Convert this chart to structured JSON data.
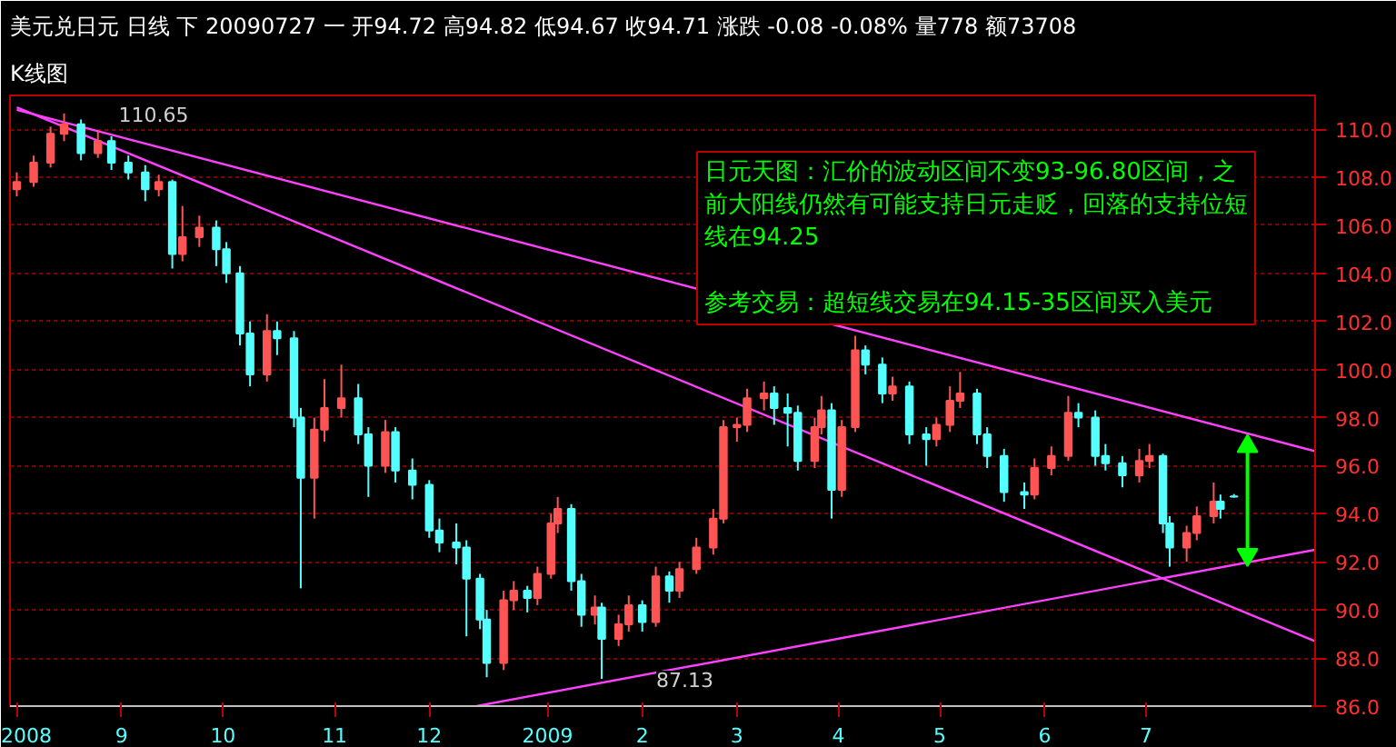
{
  "chart_data": {
    "type": "candlestick",
    "title": "美元兑日元 日线 下 20090727 一 开94.72 高94.82 低94.67 收94.71 涨跌 -0.08 -0.08% 量778 额73708",
    "subtitle": "K线图",
    "series": [
      {
        "type": "candlestick",
        "color": "#ff5454",
        "x": [
          "2008-08-01",
          "2008-08-06",
          "2008-08-11",
          "2008-08-15",
          "2008-08-25",
          "2008-09-12",
          "2008-09-19",
          "2008-09-24",
          "2008-10-14",
          "2008-10-28",
          "2008-10-31",
          "2008-11-05",
          "2008-11-18",
          "2008-12-23",
          "2008-12-26",
          "2009-01-02",
          "2009-01-06",
          "2009-01-08",
          "2009-01-19",
          "2009-01-26",
          "2009-01-29",
          "2009-02-06",
          "2009-02-13",
          "2009-02-18",
          "2009-02-23",
          "2009-02-26",
          "2009-03-02",
          "2009-03-05",
          "2009-03-10",
          "2009-03-25",
          "2009-03-27",
          "2009-04-02",
          "2009-04-06",
          "2009-04-17",
          "2009-04-30",
          "2009-05-04",
          "2009-05-07",
          "2009-05-29",
          "2009-06-03",
          "2009-06-08",
          "2009-06-29",
          "2009-07-02",
          "2009-07-13",
          "2009-07-16",
          "2009-07-21"
        ],
        "ohlc": [
          [
            107.5,
            108.2,
            107.2,
            107.8
          ],
          [
            107.8,
            108.9,
            107.6,
            108.6
          ],
          [
            108.6,
            110.1,
            108.4,
            109.8
          ],
          [
            109.8,
            110.65,
            109.5,
            110.2
          ],
          [
            109.0,
            109.9,
            108.8,
            109.5
          ],
          [
            107.5,
            108.1,
            107.2,
            107.8
          ],
          [
            104.8,
            106.8,
            104.5,
            105.5
          ],
          [
            105.5,
            106.4,
            105.1,
            105.9
          ],
          [
            99.8,
            102.3,
            99.5,
            101.6
          ],
          [
            95.5,
            98.0,
            93.8,
            97.5
          ],
          [
            97.5,
            99.6,
            97.0,
            98.4
          ],
          [
            98.4,
            100.2,
            98.0,
            98.8
          ],
          [
            96.0,
            97.9,
            95.7,
            97.4
          ],
          [
            87.8,
            90.8,
            87.5,
            90.4
          ],
          [
            90.4,
            91.2,
            90.0,
            90.8
          ],
          [
            90.5,
            91.8,
            90.2,
            91.5
          ],
          [
            91.5,
            94.0,
            91.3,
            93.6
          ],
          [
            93.6,
            94.7,
            93.2,
            94.2
          ],
          [
            89.8,
            90.6,
            89.4,
            90.1
          ],
          [
            88.8,
            89.8,
            88.5,
            89.4
          ],
          [
            89.4,
            90.6,
            89.1,
            90.2
          ],
          [
            89.5,
            91.8,
            89.3,
            91.4
          ],
          [
            90.8,
            92.0,
            90.5,
            91.7
          ],
          [
            91.7,
            93.0,
            91.5,
            92.6
          ],
          [
            92.6,
            94.2,
            92.3,
            93.8
          ],
          [
            93.8,
            97.9,
            93.6,
            97.6
          ],
          [
            97.6,
            98.0,
            97.0,
            97.7
          ],
          [
            97.7,
            99.2,
            97.4,
            98.8
          ],
          [
            98.8,
            99.5,
            98.3,
            99.0
          ],
          [
            96.2,
            98.0,
            95.9,
            97.6
          ],
          [
            97.6,
            98.9,
            97.3,
            98.3
          ],
          [
            95.0,
            97.9,
            94.7,
            97.6
          ],
          [
            97.6,
            101.4,
            97.4,
            100.8
          ],
          [
            99.0,
            99.7,
            98.7,
            99.3
          ],
          [
            97.1,
            98.0,
            96.8,
            97.7
          ],
          [
            97.7,
            99.3,
            97.4,
            98.7
          ],
          [
            98.7,
            99.9,
            98.4,
            99.0
          ],
          [
            94.8,
            96.3,
            94.6,
            95.9
          ],
          [
            95.9,
            96.8,
            95.6,
            96.4
          ],
          [
            96.4,
            98.9,
            96.2,
            98.2
          ],
          [
            95.6,
            96.7,
            95.3,
            96.2
          ],
          [
            96.2,
            96.9,
            95.9,
            96.4
          ],
          [
            92.6,
            93.5,
            92.0,
            93.2
          ],
          [
            93.2,
            94.3,
            92.9,
            93.9
          ],
          [
            93.9,
            95.3,
            93.6,
            94.5
          ]
        ]
      },
      {
        "type": "candlestick",
        "color": "#54ffff",
        "x": [
          "2008-08-20",
          "2008-08-29",
          "2008-09-03",
          "2008-09-08",
          "2008-09-16",
          "2008-09-29",
          "2008-10-02",
          "2008-10-06",
          "2008-10-09",
          "2008-10-17",
          "2008-10-22",
          "2008-10-24",
          "2008-11-10",
          "2008-11-13",
          "2008-11-21",
          "2008-11-26",
          "2008-12-01",
          "2008-12-04",
          "2008-12-09",
          "2008-12-12",
          "2008-12-16",
          "2008-12-18",
          "2008-12-30",
          "2009-01-12",
          "2009-01-15",
          "2009-01-21",
          "2009-02-02",
          "2009-02-10",
          "2009-03-13",
          "2009-03-17",
          "2009-03-20",
          "2009-03-30",
          "2009-04-09",
          "2009-04-14",
          "2009-04-22",
          "2009-04-27",
          "2009-05-12",
          "2009-05-15",
          "2009-05-20",
          "2009-05-26",
          "2009-06-11",
          "2009-06-16",
          "2009-06-19",
          "2009-06-24",
          "2009-07-06",
          "2009-07-08",
          "2009-07-23",
          "2009-07-27"
        ],
        "ohlc": [
          [
            110.2,
            110.4,
            108.7,
            109.0
          ],
          [
            109.5,
            109.7,
            108.3,
            108.6
          ],
          [
            108.6,
            108.9,
            107.9,
            108.2
          ],
          [
            108.2,
            108.5,
            107.0,
            107.5
          ],
          [
            107.8,
            107.9,
            104.2,
            104.8
          ],
          [
            105.9,
            106.2,
            104.3,
            105.0
          ],
          [
            105.0,
            105.3,
            103.6,
            104.0
          ],
          [
            104.0,
            104.3,
            101.0,
            101.5
          ],
          [
            101.5,
            102.0,
            99.3,
            99.8
          ],
          [
            101.6,
            102.0,
            100.6,
            101.3
          ],
          [
            101.3,
            101.6,
            97.6,
            98.0
          ],
          [
            98.0,
            98.4,
            90.9,
            95.5
          ],
          [
            98.8,
            99.4,
            96.9,
            97.3
          ],
          [
            97.3,
            97.6,
            94.7,
            96.0
          ],
          [
            97.4,
            97.6,
            95.3,
            95.8
          ],
          [
            95.8,
            96.3,
            94.6,
            95.2
          ],
          [
            95.2,
            95.4,
            93.0,
            93.3
          ],
          [
            93.3,
            93.8,
            92.4,
            92.8
          ],
          [
            92.8,
            93.6,
            91.9,
            92.6
          ],
          [
            92.6,
            92.9,
            88.9,
            91.3
          ],
          [
            91.3,
            91.5,
            89.2,
            89.6
          ],
          [
            89.6,
            90.0,
            87.2,
            87.8
          ],
          [
            90.8,
            91.0,
            89.9,
            90.5
          ],
          [
            94.2,
            94.4,
            90.8,
            91.2
          ],
          [
            91.2,
            91.5,
            89.3,
            89.8
          ],
          [
            90.1,
            90.3,
            87.13,
            88.8
          ],
          [
            90.2,
            90.4,
            89.1,
            89.5
          ],
          [
            91.4,
            91.6,
            90.3,
            90.8
          ],
          [
            99.0,
            99.3,
            97.7,
            98.4
          ],
          [
            98.4,
            99.0,
            96.8,
            98.2
          ],
          [
            98.2,
            98.5,
            95.8,
            96.2
          ],
          [
            98.3,
            98.6,
            93.8,
            95.0
          ],
          [
            100.8,
            101.0,
            99.8,
            100.2
          ],
          [
            100.2,
            100.5,
            98.6,
            99.0
          ],
          [
            99.3,
            99.5,
            96.9,
            97.3
          ],
          [
            97.3,
            97.6,
            96.0,
            97.1
          ],
          [
            99.0,
            99.2,
            96.9,
            97.3
          ],
          [
            97.3,
            97.6,
            95.9,
            96.4
          ],
          [
            96.4,
            96.7,
            94.5,
            94.9
          ],
          [
            94.9,
            95.3,
            94.2,
            94.8
          ],
          [
            98.2,
            98.6,
            97.6,
            98.0
          ],
          [
            98.0,
            98.3,
            96.0,
            96.4
          ],
          [
            96.4,
            96.9,
            95.8,
            96.1
          ],
          [
            96.1,
            96.4,
            95.1,
            95.6
          ],
          [
            96.4,
            96.5,
            93.2,
            93.6
          ],
          [
            93.6,
            93.9,
            91.8,
            92.6
          ],
          [
            94.5,
            94.8,
            93.8,
            94.2
          ],
          [
            94.72,
            94.82,
            94.67,
            94.71
          ]
        ]
      },
      {
        "type": "line",
        "color": "#ff40ff",
        "x": [
          "2008-08-01",
          "2009-08-20"
        ],
        "values": [
          110.8,
          96.6
        ]
      },
      {
        "type": "line",
        "color": "#ff40ff",
        "x": [
          "2008-08-01",
          "2009-08-20"
        ],
        "values": [
          110.9,
          88.7
        ]
      },
      {
        "type": "line",
        "color": "#ff40ff",
        "x": [
          "2008-12-15",
          "2009-08-20"
        ],
        "values": [
          86.0,
          92.5
        ]
      },
      {
        "type": "line",
        "marker": "triangle",
        "color": "#00ff00",
        "x": [
          "2009-07-31",
          "2009-07-31"
        ],
        "values": [
          92.3,
          96.8
        ]
      }
    ],
    "annotations": [
      {
        "text": "110.65",
        "x": "2008-08-15",
        "y": 110.65
      },
      {
        "text": "87.13",
        "x": "2009-01-21",
        "y": 87.13
      },
      "日元天图：汇价的波动区间不变93-96.80区间，之前大阳线仍然有可能支持日元走贬，回落的支持位短线在94.25",
      "参考交易：超短线交易在94.15-35区间买入美元"
    ],
    "xlim": [
      "2008-07-30",
      "2009-08-20"
    ],
    "xticks": [
      {
        "value": "2008-08-01",
        "label": "2008"
      },
      {
        "value": "2008-09-01",
        "label": "9"
      },
      {
        "value": "2008-10-01",
        "label": "10"
      },
      {
        "value": "2008-11-03",
        "label": "11"
      },
      {
        "value": "2008-12-01",
        "label": "12"
      },
      {
        "value": "2009-01-05",
        "label": "2009"
      },
      {
        "value": "2009-02-02",
        "label": "2"
      },
      {
        "value": "2009-03-02",
        "label": "3"
      },
      {
        "value": "2009-04-01",
        "label": "4"
      },
      {
        "value": "2009-05-01",
        "label": "5"
      },
      {
        "value": "2009-06-01",
        "label": "6"
      },
      {
        "value": "2009-07-01",
        "label": "7"
      }
    ],
    "ylim": [
      86,
      111.4
    ],
    "yticks": [
      {
        "value": 86,
        "label": "86.0"
      },
      {
        "value": 88,
        "label": "88.0"
      },
      {
        "value": 90,
        "label": "90.0"
      },
      {
        "value": 92,
        "label": "92.0"
      },
      {
        "value": 94,
        "label": "94.0"
      },
      {
        "value": 96,
        "label": "96.0"
      },
      {
        "value": 98,
        "label": "98.0"
      },
      {
        "value": 100,
        "label": "100.0"
      },
      {
        "value": 102,
        "label": "102.0"
      },
      {
        "value": 104,
        "label": "104.0"
      },
      {
        "value": 106,
        "label": "106.0"
      },
      {
        "value": 108,
        "label": "108.0"
      },
      {
        "value": 110,
        "label": "110.0"
      }
    ],
    "grid": "y"
  }
}
